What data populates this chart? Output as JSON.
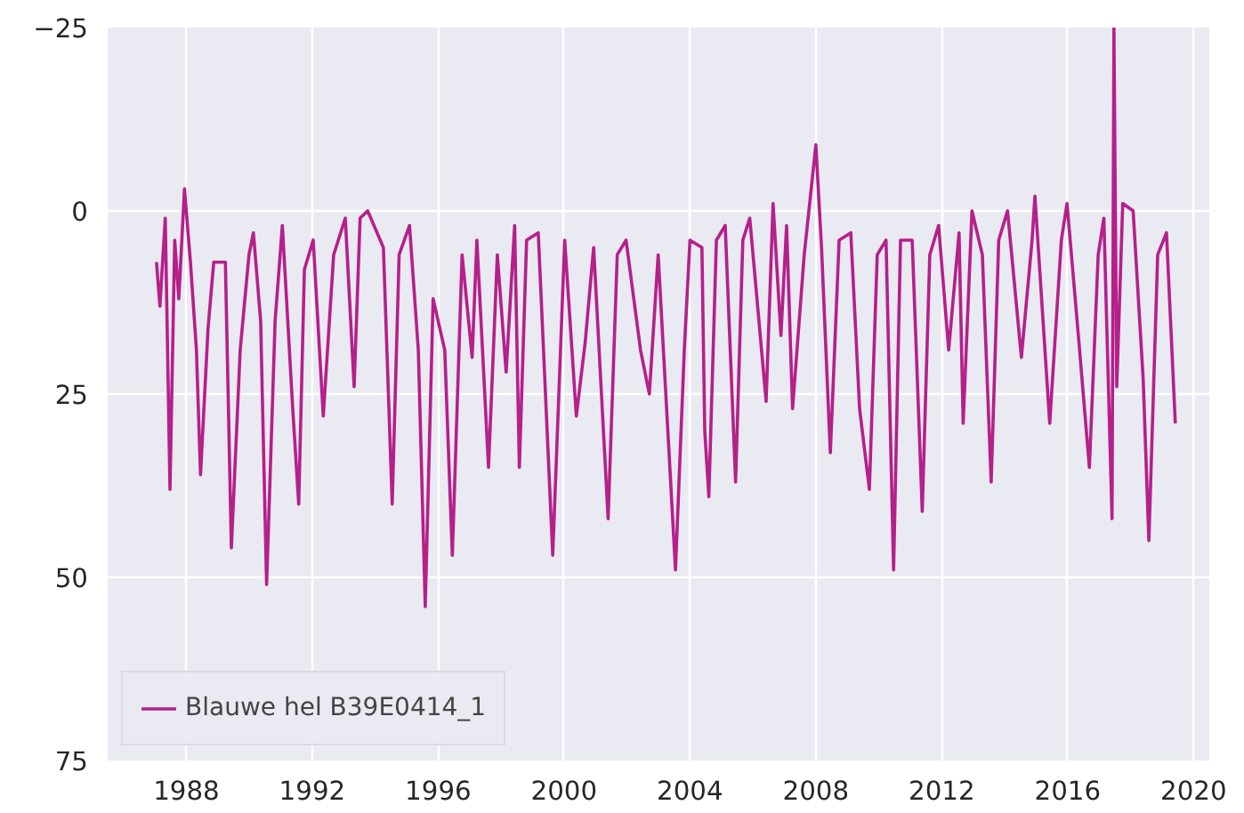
{
  "chart_data": {
    "type": "line",
    "xlim": [
      1985.5,
      2020.5
    ],
    "ylim": [
      75,
      -25
    ],
    "xticks": [
      1988,
      1992,
      1996,
      2000,
      2004,
      2008,
      2012,
      2016,
      2020
    ],
    "yticks": [
      {
        "value": -25,
        "label": "−25"
      },
      0,
      25,
      50,
      75
    ],
    "grid": true,
    "legend": "bottom left",
    "series": [
      {
        "name": "Blauwe hel B39E0414_1",
        "color": "#b5208a",
        "x": [
          1987.05,
          1987.16,
          1987.33,
          1987.48,
          1987.63,
          1987.76,
          1987.94,
          1988.13,
          1988.32,
          1988.45,
          1988.69,
          1988.87,
          1989.24,
          1989.43,
          1989.71,
          1989.99,
          1990.13,
          1990.36,
          1990.55,
          1990.82,
          1991.05,
          1991.38,
          1991.57,
          1991.75,
          1992.03,
          1992.35,
          1992.68,
          1993.05,
          1993.33,
          1993.52,
          1993.76,
          1994.26,
          1994.54,
          1994.76,
          1995.09,
          1995.37,
          1995.59,
          1995.84,
          1996.21,
          1996.45,
          1996.76,
          1997.08,
          1997.23,
          1997.6,
          1997.88,
          1998.16,
          1998.43,
          1998.58,
          1998.81,
          1999.18,
          1999.64,
          2000.02,
          2000.39,
          2000.67,
          2000.94,
          2001.4,
          2001.69,
          2001.97,
          2002.43,
          2002.71,
          2002.99,
          2003.54,
          2003.82,
          2004.0,
          2004.38,
          2004.47,
          2004.6,
          2004.84,
          2005.12,
          2005.45,
          2005.68,
          2005.9,
          2006.42,
          2006.64,
          2006.89,
          2007.07,
          2007.26,
          2007.63,
          2008.0,
          2008.18,
          2008.46,
          2008.74,
          2009.11,
          2009.39,
          2009.7,
          2009.95,
          2010.23,
          2010.47,
          2010.69,
          2011.06,
          2011.38,
          2011.62,
          2011.9,
          2012.22,
          2012.55,
          2012.68,
          2012.96,
          2013.29,
          2013.57,
          2013.81,
          2014.09,
          2014.53,
          2014.87,
          2014.96,
          2015.43,
          2015.8,
          2015.98,
          2016.36,
          2016.69,
          2016.97,
          2017.15,
          2017.41,
          2017.47,
          2017.56,
          2017.75,
          2018.08,
          2018.4,
          2018.58,
          2018.86,
          2019.14,
          2019.42
        ],
        "values": [
          7,
          13,
          1,
          38,
          4,
          12,
          -3,
          7,
          19,
          36,
          16,
          7,
          7,
          46,
          19,
          6,
          3,
          15,
          51,
          15,
          2,
          27,
          40,
          8,
          4,
          28,
          6,
          1,
          24,
          1,
          0,
          5,
          40,
          6,
          2,
          19,
          54,
          12,
          19,
          47,
          6,
          20,
          4,
          35,
          6,
          22,
          2,
          35,
          4,
          3,
          47,
          4,
          28,
          18,
          5,
          42,
          6,
          4,
          19,
          25,
          6,
          49,
          19,
          4,
          5,
          30,
          39,
          4,
          2,
          37,
          4,
          1,
          26,
          -1,
          17,
          2,
          27,
          6,
          -9,
          5,
          33,
          4,
          3,
          27,
          38,
          6,
          4,
          49,
          4,
          4,
          41,
          6,
          2,
          19,
          3,
          29,
          0,
          6,
          37,
          4,
          0,
          20,
          4,
          -2,
          29,
          4,
          -1,
          18,
          35,
          6,
          1,
          42,
          -25,
          24,
          -1,
          0,
          23,
          45,
          6,
          3,
          29
        ]
      }
    ]
  }
}
